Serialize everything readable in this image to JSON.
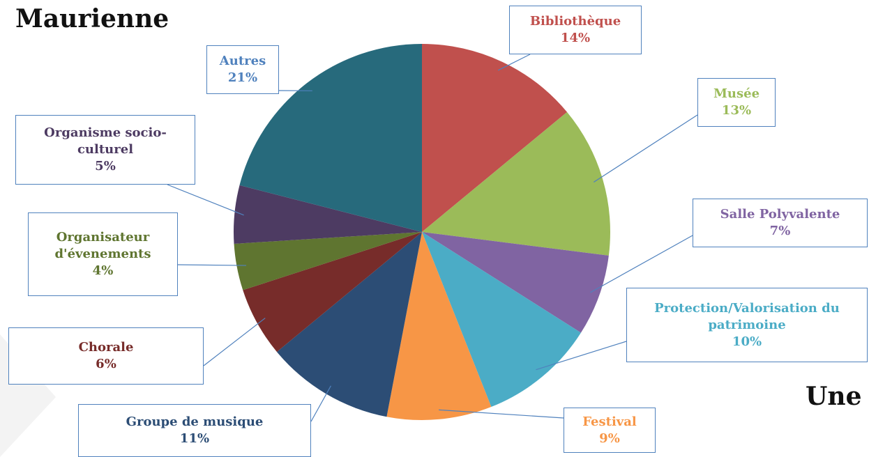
{
  "chart_data": {
    "type": "pie",
    "title": "Maurienne",
    "categories": [
      "Bibliothèque",
      "Musée",
      "Salle Polyvalente",
      "Protection/Valorisation du patrimoine",
      "Festival",
      "Groupe de musique",
      "Chorale",
      "Organisateur d'évenements",
      "Organisme socio-culturel",
      "Autres"
    ],
    "values": [
      14,
      13,
      7,
      10,
      9,
      11,
      6,
      4,
      5,
      21
    ],
    "value_labels": [
      "14%",
      "13%",
      "7%",
      "10%",
      "9%",
      "11%",
      "6%",
      "4%",
      "5%",
      "21%"
    ],
    "colors": [
      "#c0504d",
      "#9bbb59",
      "#8064a2",
      "#4bacc6",
      "#f79646",
      "#2c4d75",
      "#772c2a",
      "#5f7530",
      "#4d3b62",
      "#276a7c"
    ],
    "annotations": [
      "Une"
    ]
  }
}
